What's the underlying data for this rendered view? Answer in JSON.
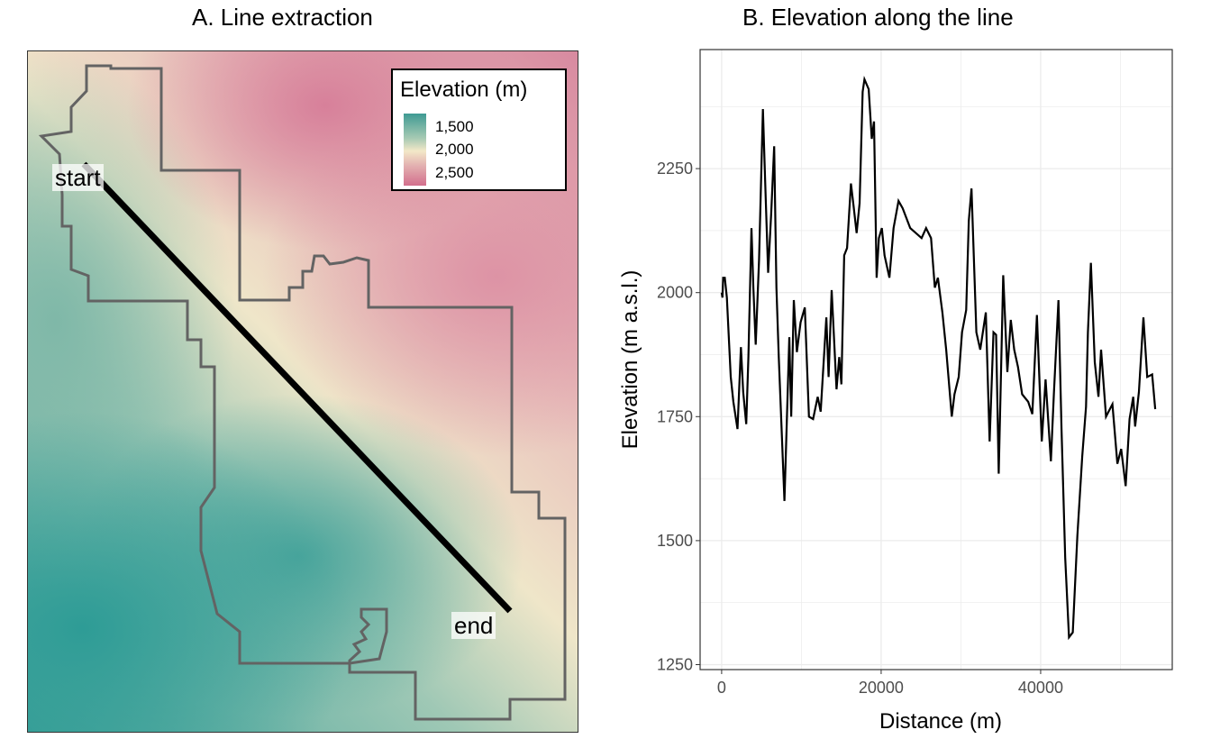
{
  "panel_a": {
    "title": "A. Line extraction",
    "start_label": "start",
    "end_label": "end",
    "legend": {
      "title": "Elevation (m)",
      "ticks": [
        "1,500",
        "2,000",
        "2,500"
      ],
      "colors": [
        "#3f9a93",
        "#f3e8c8",
        "#d36f8d"
      ]
    },
    "line_color": "#000000",
    "boundary_color": "#636363"
  },
  "chart_data": {
    "type": "line",
    "title": "B. Elevation along the line",
    "xlabel": "Distance (m)",
    "ylabel": "Elevation (m a.s.l.)",
    "xlim": [
      -2700,
      56500
    ],
    "ylim": [
      1240,
      2490
    ],
    "xticks": [
      0,
      20000,
      40000
    ],
    "xtick_labels": [
      "0",
      "20000",
      "40000"
    ],
    "yticks": [
      1250,
      1500,
      1750,
      2000,
      2250
    ],
    "ytick_labels": [
      "1250",
      "1500",
      "1750",
      "2000",
      "2250"
    ],
    "grid": true,
    "line_color": "#000000",
    "x": [
      0,
      100,
      190,
      400,
      660,
      1140,
      1470,
      1990,
      2420,
      2700,
      3080,
      3360,
      3740,
      3980,
      4270,
      4690,
      5170,
      5450,
      5830,
      6210,
      6590,
      6870,
      7160,
      7870,
      8480,
      8720,
      9050,
      9430,
      9900,
      10430,
      10950,
      11470,
      12040,
      12420,
      13130,
      13410,
      13790,
      14410,
      14740,
      15020,
      15360,
      15730,
      16210,
      16540,
      16920,
      17300,
      17680,
      17910,
      18440,
      18820,
      19100,
      19430,
      19720,
      20090,
      20430,
      21040,
      21560,
      22180,
      22700,
      23650,
      25070,
      25640,
      26260,
      26730,
      27110,
      27680,
      28150,
      28860,
      29190,
      29720,
      30140,
      30660,
      30990,
      31330,
      31940,
      32420,
      33130,
      33600,
      34080,
      34410,
      34740,
      35310,
      35830,
      36260,
      36680,
      37160,
      37680,
      38430,
      38960,
      39530,
      40140,
      40620,
      41280,
      41660,
      42230,
      42610,
      43080,
      43550,
      44030,
      44600,
      45210,
      45690,
      45920,
      46300,
      46780,
      47250,
      47580,
      48200,
      49000,
      49620,
      50090,
      50660,
      51140,
      51610,
      51850,
      52320,
      52890,
      53360,
      53980,
      54360
    ],
    "y": [
      2000,
      1990,
      2030,
      2030,
      1990,
      1830,
      1780,
      1725,
      1890,
      1800,
      1735,
      1870,
      2130,
      2010,
      1895,
      2065,
      2370,
      2230,
      2040,
      2160,
      2295,
      2010,
      1870,
      1580,
      1910,
      1750,
      1985,
      1880,
      1940,
      1970,
      1750,
      1745,
      1790,
      1760,
      1950,
      1830,
      2005,
      1805,
      1870,
      1815,
      2075,
      2090,
      2220,
      2175,
      2120,
      2180,
      2405,
      2430,
      2410,
      2310,
      2345,
      2030,
      2110,
      2130,
      2075,
      2030,
      2130,
      2185,
      2170,
      2130,
      2110,
      2130,
      2110,
      2010,
      2030,
      1960,
      1885,
      1750,
      1795,
      1830,
      1920,
      1965,
      2145,
      2210,
      1920,
      1885,
      1960,
      1700,
      1920,
      1915,
      1635,
      2035,
      1840,
      1945,
      1885,
      1850,
      1795,
      1780,
      1755,
      1955,
      1700,
      1825,
      1660,
      1795,
      1985,
      1725,
      1465,
      1305,
      1315,
      1510,
      1670,
      1770,
      1920,
      2060,
      1860,
      1790,
      1885,
      1750,
      1775,
      1655,
      1685,
      1610,
      1745,
      1790,
      1730,
      1800,
      1950,
      1830,
      1835,
      1765
    ]
  }
}
